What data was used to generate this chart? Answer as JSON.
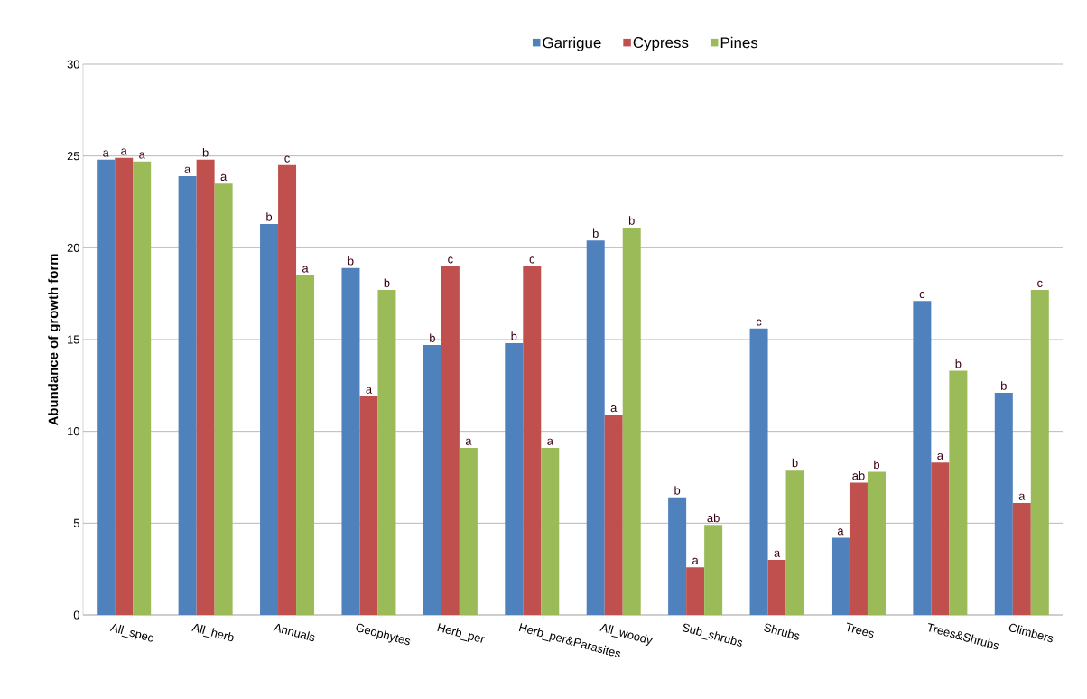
{
  "chart_data": {
    "type": "bar",
    "ylabel": "**Abundance of growth form**",
    "categories": [
      "All_spec",
      "All_herb",
      "Annuals",
      "Geophytes",
      "Herb_per",
      "Herb_per&Parasites",
      "All_woody",
      "Sub_shrubs",
      "Shrubs",
      "Trees",
      "Trees&Shrubs",
      "Climbers"
    ],
    "series": [
      {
        "name": "Garrigue",
        "color": "#4f81bd",
        "values": [
          24.8,
          23.9,
          21.3,
          18.9,
          14.7,
          14.8,
          20.4,
          6.4,
          15.6,
          4.2,
          17.1,
          12.1
        ],
        "value_labels": [
          "a",
          "a",
          "b",
          "b",
          "b",
          "b",
          "b",
          "b",
          "c",
          "a",
          "c",
          "b"
        ]
      },
      {
        "name": "Cypress",
        "color": "#c0504d",
        "values": [
          24.9,
          24.8,
          24.5,
          11.9,
          19.0,
          19.0,
          10.9,
          2.6,
          3.0,
          7.2,
          8.3,
          6.1
        ],
        "value_labels": [
          "a",
          "b",
          "c",
          "a",
          "c",
          "c",
          "a",
          "a",
          "a",
          "ab",
          "a",
          "a"
        ]
      },
      {
        "name": "Pines",
        "color": "#9bbb59",
        "values": [
          24.7,
          23.5,
          18.5,
          17.7,
          9.1,
          9.1,
          21.1,
          4.9,
          7.9,
          7.8,
          13.3,
          17.7
        ],
        "value_labels": [
          "a",
          "a",
          "a",
          "b",
          "a",
          "a",
          "b",
          "ab",
          "b",
          "b",
          "b",
          "c"
        ]
      }
    ],
    "ylim": [
      0,
      30
    ],
    "yticks": [
      0,
      5,
      10,
      15,
      20,
      25,
      30
    ],
    "grid": "y",
    "legend": "top"
  }
}
